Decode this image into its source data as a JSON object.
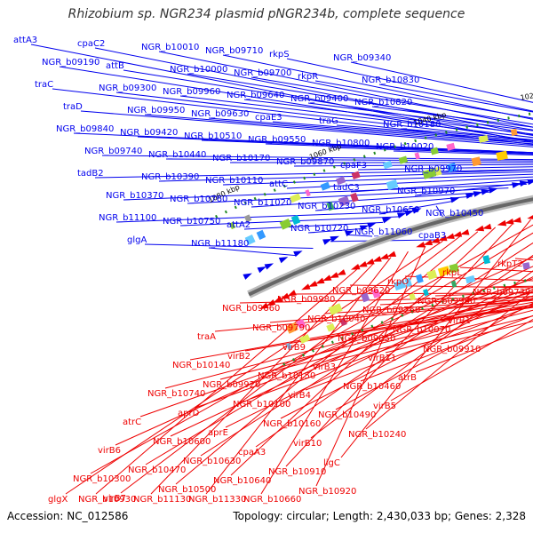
{
  "title": "Rhizobium sp. NGR234 plasmid pNGR234b, complete sequence",
  "footer": {
    "accession": "Accession: NC_012586",
    "summary": "Topology: circular; Length: 2,430,033 bp; Genes: 2,328"
  },
  "colors": {
    "forward": "#0000ee",
    "reverse": "#ee0000",
    "backbone": "#666666",
    "ticks": "#228b22"
  },
  "ticks": [
    "880 kbp",
    "900 kbp",
    "920 kbp",
    "940 kbp",
    "960 kbp",
    "980 kbp",
    "1000 kbp",
    "1020 kbp",
    "1040 kbp",
    "1060 kbp",
    "1080 kbp"
  ],
  "forward_labels": [
    "attA3",
    "cpaC2",
    "NGR_b10010",
    "NGR_b09710",
    "rkpS",
    "NGR_b09340",
    "NGR_b09190",
    "attB",
    "NGR_b10000",
    "NGR_b09700",
    "rkpR",
    "NGR_b10830",
    "traC",
    "NGR_b09300",
    "NGR_b09960",
    "NGR_b09640",
    "NGR_b09400",
    "NGR_b10820",
    "traD",
    "NGR_b09950",
    "NGR_b09630",
    "cpaE3",
    "traG",
    "NGR_b10180",
    "NGR_b09840",
    "NGR_b09420",
    "NGR_b10510",
    "NGR_b09550",
    "NGR_b10800",
    "NGR_b10020",
    "NGR_b09740",
    "NGR_b10440",
    "NGR_b10170",
    "NGR_b09870",
    "cpaF3",
    "NGR_b09970",
    "tadB2",
    "NGR_b10390",
    "NGR_b10110",
    "attC",
    "tadC3",
    "NGR_b10970",
    "NGR_b10370",
    "NGR_b10760",
    "NGR_b11020",
    "NGR_b10230",
    "NGR_b10650",
    "NGR_b10450",
    "NGR_b11100",
    "NGR_b10750",
    "attA2",
    "NGR_b10720",
    "NGR_b11060",
    "cpaB3",
    "glgA",
    "NGR_b11180"
  ],
  "reverse_labels": [
    "rkpT2",
    "rkpL",
    "rkpO",
    "NGR_b09620",
    "NGR_b09980",
    "NGR_b09660",
    "NGR_b09730",
    "NGR_b09990",
    "NGR_b09760",
    "NGR_b10040",
    "NGR_b09790",
    "traA",
    "virB1",
    "NGR_b10070",
    "NGR_b09850",
    "virB9",
    "virB2",
    "NGR_b10140",
    "NGR_b09910",
    "virB11",
    "virB3",
    "NGR_b10150",
    "NGR_b09920",
    "NGR_b10740",
    "atrB",
    "NGR_b10460",
    "virB4",
    "NGR_b10100",
    "aprD",
    "atrC",
    "virB5",
    "NGR_b10490",
    "NGR_b10160",
    "aprE",
    "NGR_b10600",
    "virB6",
    "NGR_b10240",
    "virB10",
    "cpaA3",
    "NGR_b10630",
    "NGR_b10470",
    "NGR_b10300",
    "ligC",
    "NGR_b10910",
    "NGR_b10640",
    "NGR_b10500",
    "virB7",
    "glgX",
    "NGR_b10920",
    "NGR_b10660",
    "NGR_b11330",
    "NGR_b11130",
    "NGR_b10930"
  ]
}
